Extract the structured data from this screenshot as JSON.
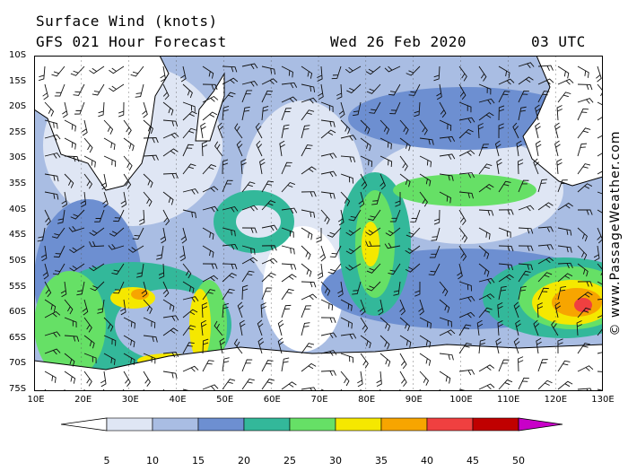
{
  "header": {
    "title": "Surface Wind (knots)",
    "model": "GFS 021 Hour Forecast",
    "date": "Wed 26 Feb 2020",
    "time": "03 UTC"
  },
  "watermark": "© www.PassageWeather.com",
  "axes": {
    "lat_labels": [
      "10S",
      "15S",
      "20S",
      "25S",
      "30S",
      "35S",
      "40S",
      "45S",
      "50S",
      "55S",
      "60S",
      "65S",
      "70S",
      "75S"
    ],
    "lon_labels": [
      "10E",
      "20E",
      "30E",
      "40E",
      "50E",
      "60E",
      "70E",
      "80E",
      "90E",
      "100E",
      "110E",
      "120E",
      "130E"
    ]
  },
  "legend": {
    "unit": "knots",
    "labels": [
      "5",
      "10",
      "15",
      "20",
      "25",
      "30",
      "35",
      "40",
      "45",
      "50"
    ],
    "colors": [
      "#ffffff",
      "#dfe6f4",
      "#a9bde3",
      "#6d8fd1",
      "#33b89a",
      "#66e066",
      "#f5e800",
      "#f7a500",
      "#f04040",
      "#c00000",
      "#c800c8"
    ]
  },
  "map_features": {
    "wind_colors": {
      "calm": "#ffffff",
      "light": "#dfe6f4",
      "moderate": "#a9bde3",
      "fresh": "#6d8fd1",
      "strong": "#33b89a",
      "near_gale": "#66e066",
      "gale": "#f5e800",
      "strong_gale": "#f7a500",
      "storm": "#f04040"
    },
    "land_color": "#ffffff"
  }
}
